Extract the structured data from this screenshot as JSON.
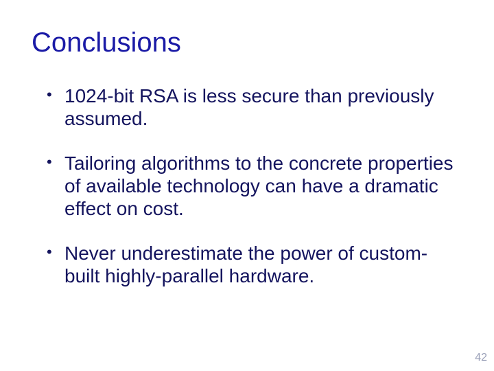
{
  "slide": {
    "title": "Conclusions",
    "title_color": "#1a1aa6",
    "body_color": "#14145e",
    "background_color": "#ffffff",
    "title_fontsize": 40,
    "body_fontsize": 28,
    "bullets": [
      "1024-bit RSA is less secure than previously assumed.",
      "Tailoring algorithms to the concrete properties of available technology can have a dramatic effect on cost.",
      "Never underestimate the power of custom-built highly-parallel hardware."
    ],
    "page_number": "42",
    "page_number_color": "#9aa0b8"
  }
}
